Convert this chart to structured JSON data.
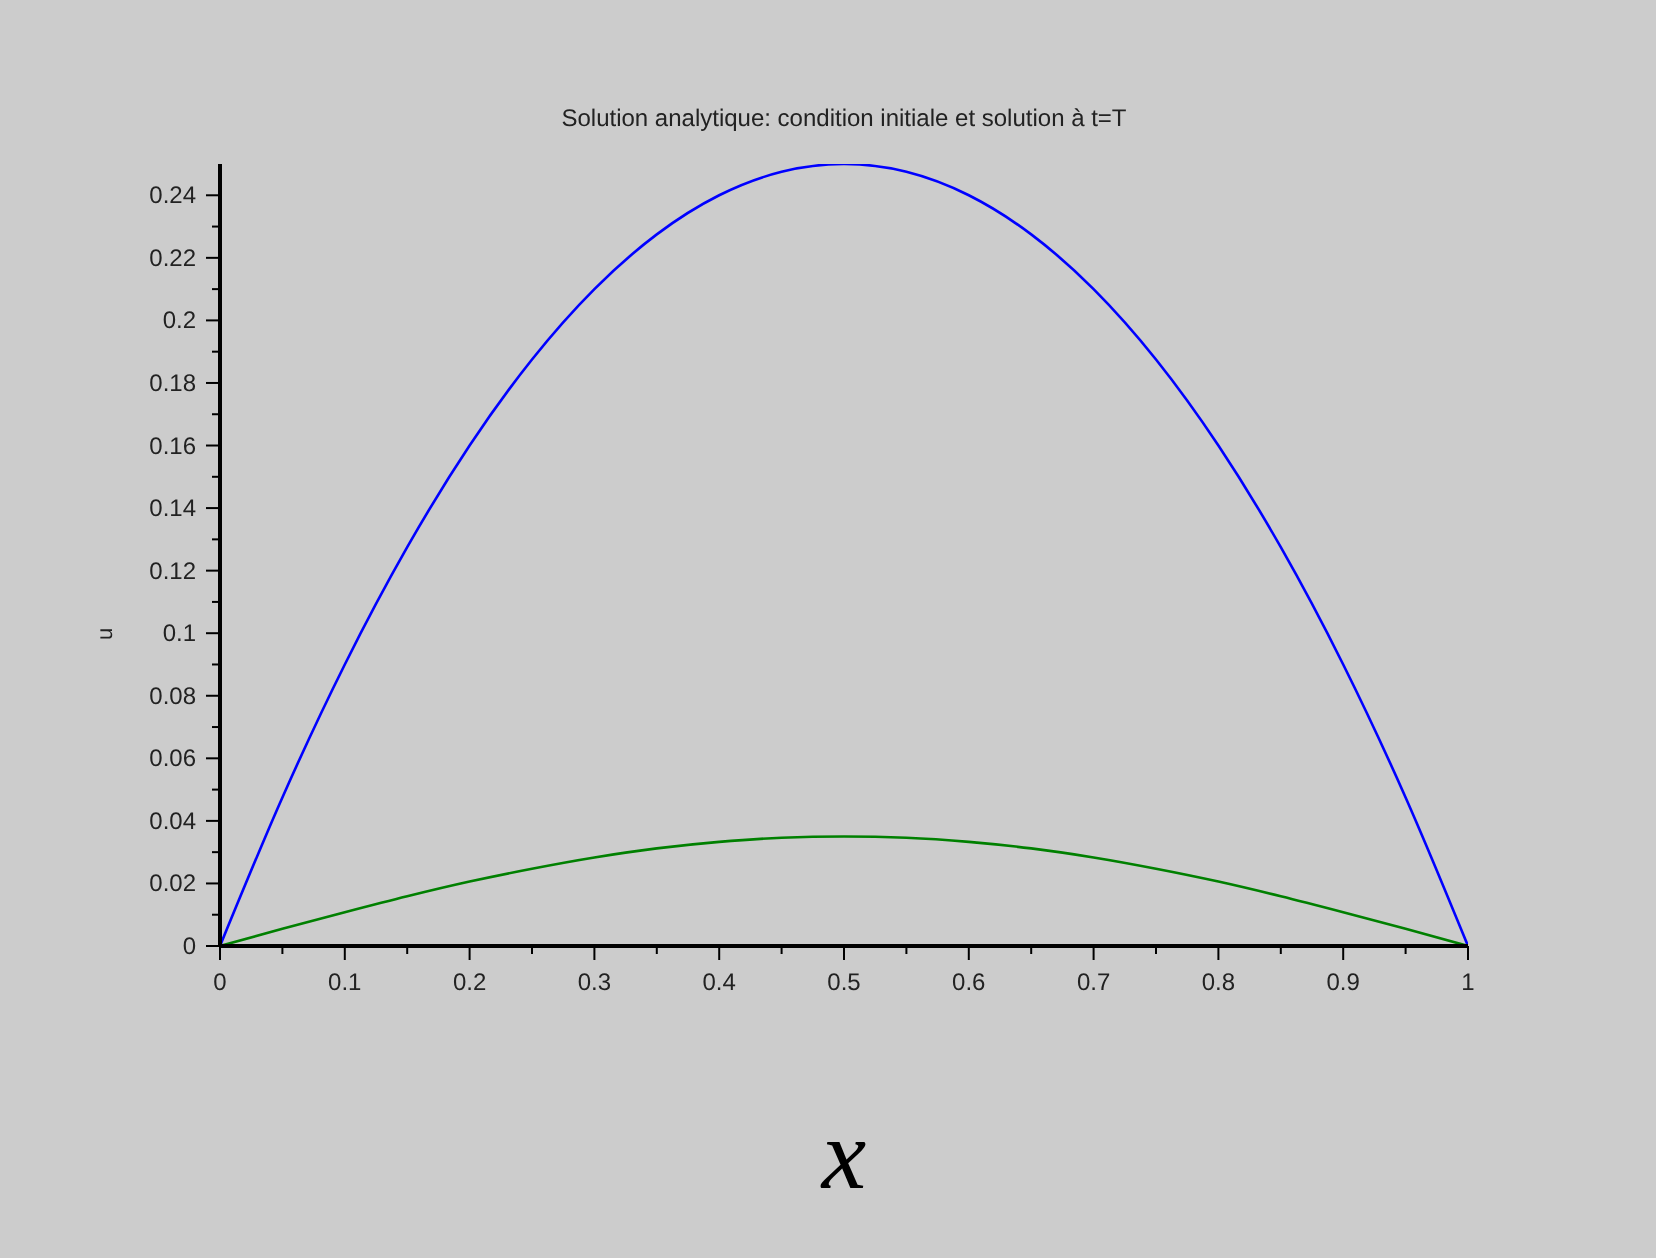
{
  "chart_data": {
    "type": "line",
    "title": "Solution analytique: condition initiale et solution à t=T",
    "xlabel": "x",
    "ylabel": "u",
    "x": [
      0,
      0.05,
      0.1,
      0.15,
      0.2,
      0.25,
      0.3,
      0.35,
      0.4,
      0.45,
      0.5,
      0.55,
      0.6,
      0.65,
      0.7,
      0.75,
      0.8,
      0.85,
      0.9,
      0.95,
      1
    ],
    "series": [
      {
        "color": "#0000ff",
        "values": [
          0,
          0.0475,
          0.09,
          0.1275,
          0.16,
          0.1875,
          0.21,
          0.2275,
          0.24,
          0.2475,
          0.25,
          0.2475,
          0.24,
          0.2275,
          0.21,
          0.1875,
          0.16,
          0.1275,
          0.09,
          0.0475,
          0
        ]
      },
      {
        "color": "#008000",
        "values": [
          0,
          0.0055,
          0.0108,
          0.0159,
          0.0206,
          0.0247,
          0.0283,
          0.0312,
          0.0333,
          0.0346,
          0.035,
          0.0346,
          0.0333,
          0.0312,
          0.0283,
          0.0247,
          0.0206,
          0.0159,
          0.0108,
          0.0055,
          0
        ]
      }
    ],
    "xlim": [
      0,
      1
    ],
    "xticks": [
      0,
      {
        "value": 0.05,
        "label": null
      },
      0.1,
      {
        "value": 0.15,
        "label": null
      },
      0.2,
      {
        "value": 0.25,
        "label": null
      },
      0.3,
      {
        "value": 0.35,
        "label": null
      },
      0.4,
      {
        "value": 0.45,
        "label": null
      },
      0.5,
      {
        "value": 0.55,
        "label": null
      },
      0.6,
      {
        "value": 0.65,
        "label": null
      },
      0.7,
      {
        "value": 0.75,
        "label": null
      },
      0.8,
      {
        "value": 0.85,
        "label": null
      },
      0.9,
      {
        "value": 0.95,
        "label": null
      },
      1
    ],
    "ylim": [
      0,
      0.25
    ],
    "yticks": [
      0,
      {
        "value": 0.01,
        "label": null
      },
      0.02,
      {
        "value": 0.03,
        "label": null
      },
      0.04,
      {
        "value": 0.05,
        "label": null
      },
      0.06,
      {
        "value": 0.07,
        "label": null
      },
      0.08,
      {
        "value": 0.09,
        "label": null
      },
      0.1,
      {
        "value": 0.11,
        "label": null
      },
      0.12,
      {
        "value": 0.13,
        "label": null
      },
      0.14,
      {
        "value": 0.15,
        "label": null
      },
      0.16,
      {
        "value": 0.17,
        "label": null
      },
      0.18,
      {
        "value": 0.19,
        "label": null
      },
      0.2,
      {
        "value": 0.21,
        "label": null
      },
      0.22,
      {
        "value": 0.23,
        "label": null
      },
      0.24
    ],
    "grid": false,
    "legend": false,
    "marker": "none",
    "line_style": "solid"
  }
}
